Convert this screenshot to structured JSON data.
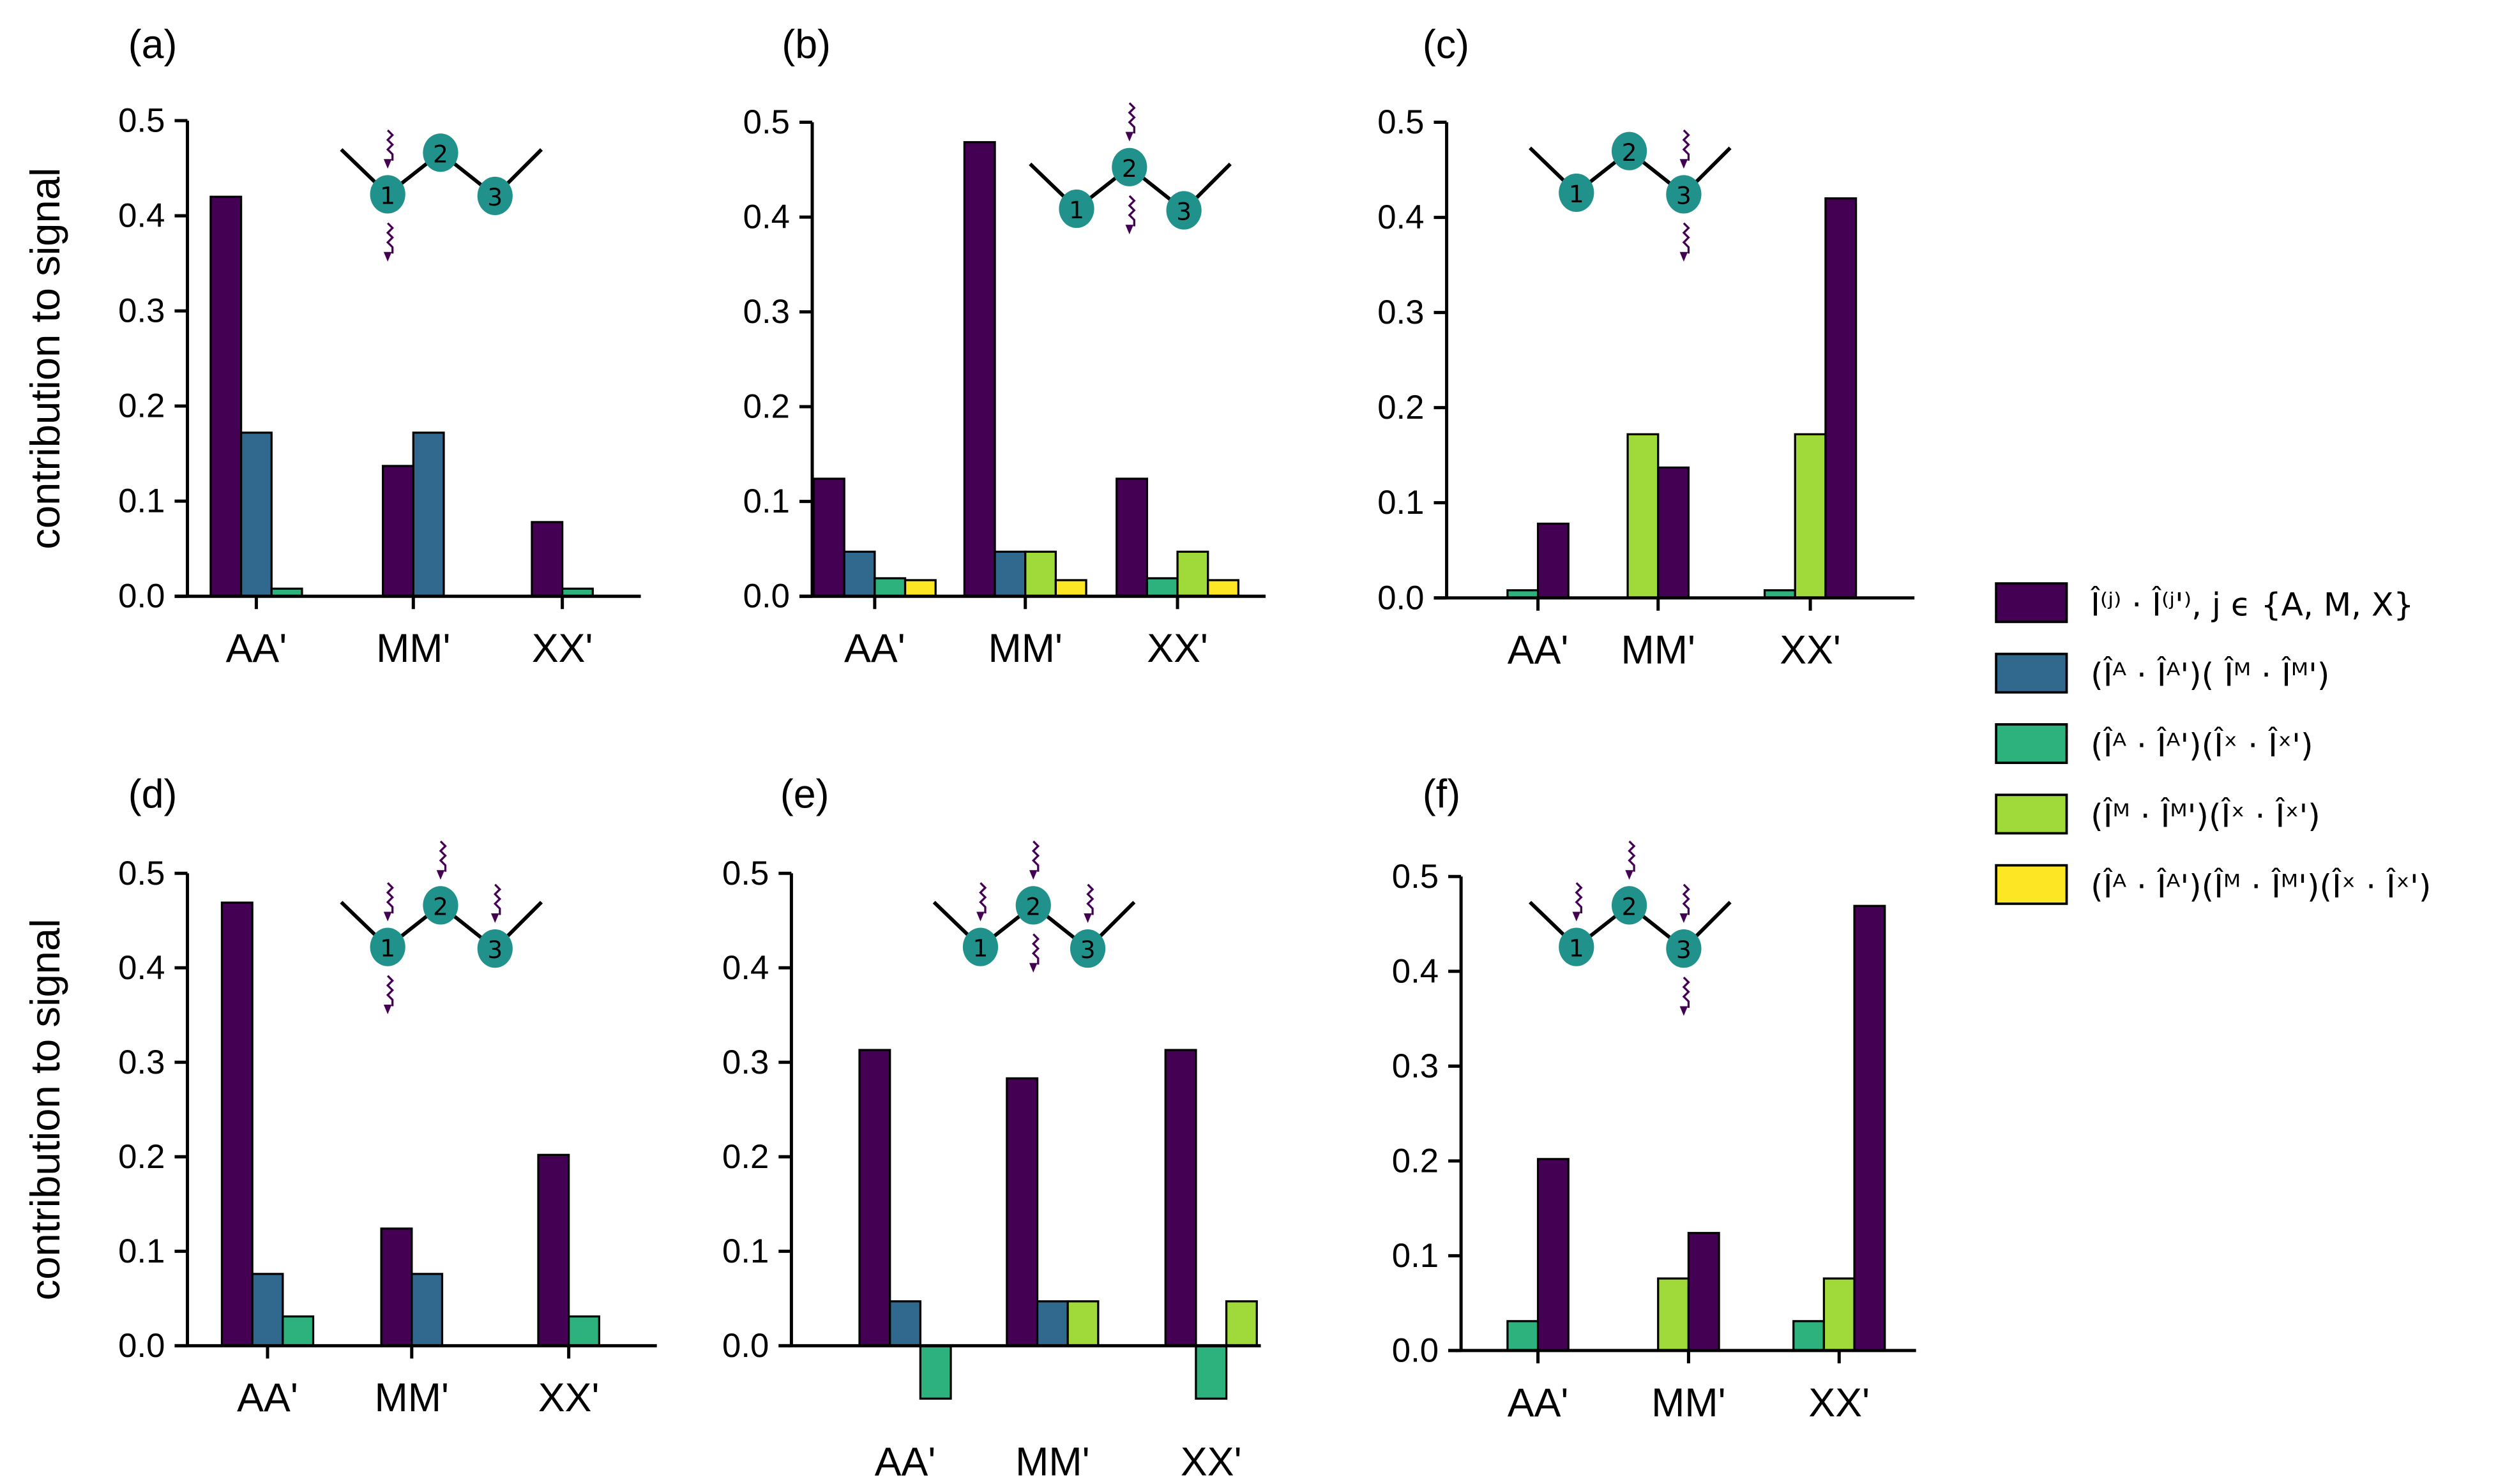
{
  "colors": {
    "s0": "#440154",
    "s1": "#31688e",
    "s2": "#2db27d",
    "s3": "#9fda3a",
    "s4": "#fde725",
    "node": "#21918c",
    "photon": "#440154"
  },
  "legend": [
    {
      "key": "s0",
      "label": "Î⁽ʲ⁾ · Î⁽ʲ'⁾,  j ϵ {A, M, X}"
    },
    {
      "key": "s1",
      "label": "(Îᴬ · Îᴬ')( Îᴹ · Îᴹ')"
    },
    {
      "key": "s2",
      "label": "(Îᴬ · Îᴬ')(Îˣ · Îˣ')"
    },
    {
      "key": "s3",
      "label": "(Îᴹ · Îᴹ')(Îˣ · Îˣ')"
    },
    {
      "key": "s4",
      "label": "(Îᴬ · Îᴬ')(Îᴹ · Îᴹ')(Îˣ · Îˣ')"
    }
  ],
  "chart_data": [
    {
      "panel": "(a)",
      "type": "bar",
      "ylabel": "contribution to signal",
      "ylim": [
        0,
        0.5
      ],
      "yticks": [
        "0.0",
        "0.1",
        "0.2",
        "0.3",
        "0.4",
        "0.5"
      ],
      "categories": [
        "AA'",
        "MM'",
        "XX'"
      ],
      "excited_sites": {
        "top": [
          1
        ],
        "bottom": [
          1
        ]
      },
      "groups": [
        [
          {
            "series": "s0",
            "value": 0.42
          },
          {
            "series": "s1",
            "value": 0.172
          },
          {
            "series": "s2",
            "value": 0.008
          }
        ],
        [
          {
            "series": "s0",
            "value": 0.137
          },
          {
            "series": "s1",
            "value": 0.172
          }
        ],
        [
          {
            "series": "s0",
            "value": 0.078
          },
          {
            "series": "s2",
            "value": 0.008
          }
        ]
      ]
    },
    {
      "panel": "(b)",
      "type": "bar",
      "ylabel": "",
      "ylim": [
        0,
        0.5
      ],
      "yticks": [
        "0.0",
        "0.1",
        "0.2",
        "0.3",
        "0.4",
        "0.5"
      ],
      "categories": [
        "AA'",
        "MM'",
        "XX'"
      ],
      "excited_sites": {
        "top": [
          2
        ],
        "bottom": [
          2
        ]
      },
      "groups": [
        [
          {
            "series": "s0",
            "value": 0.124
          },
          {
            "series": "s1",
            "value": 0.047
          },
          {
            "series": "s2",
            "value": 0.019
          },
          {
            "series": "s4",
            "value": 0.017
          }
        ],
        [
          {
            "series": "s0",
            "value": 0.479
          },
          {
            "series": "s1",
            "value": 0.047
          },
          {
            "series": "s3",
            "value": 0.047
          },
          {
            "series": "s4",
            "value": 0.017
          }
        ],
        [
          {
            "series": "s0",
            "value": 0.124
          },
          {
            "series": "s2",
            "value": 0.019
          },
          {
            "series": "s3",
            "value": 0.047
          },
          {
            "series": "s4",
            "value": 0.017
          }
        ]
      ]
    },
    {
      "panel": "(c)",
      "type": "bar",
      "ylabel": "",
      "ylim": [
        0,
        0.5
      ],
      "yticks": [
        "0.0",
        "0.1",
        "0.2",
        "0.3",
        "0.4",
        "0.5"
      ],
      "categories": [
        "AA'",
        "MM'",
        "XX'"
      ],
      "excited_sites": {
        "top": [
          3
        ],
        "bottom": [
          3
        ]
      },
      "groups": [
        [
          {
            "series": "s2",
            "value": 0.008
          },
          {
            "series": "s0",
            "value": 0.078
          }
        ],
        [
          {
            "series": "s3",
            "value": 0.172
          },
          {
            "series": "s0",
            "value": 0.137
          }
        ],
        [
          {
            "series": "s2",
            "value": 0.008
          },
          {
            "series": "s3",
            "value": 0.172
          },
          {
            "series": "s0",
            "value": 0.42
          }
        ]
      ]
    },
    {
      "panel": "(d)",
      "type": "bar",
      "ylabel": "contribution to signal",
      "ylim": [
        0,
        0.5
      ],
      "yticks": [
        "0.0",
        "0.1",
        "0.2",
        "0.3",
        "0.4",
        "0.5"
      ],
      "categories": [
        "AA'",
        "MM'",
        "XX'"
      ],
      "excited_sites": {
        "top": [
          1,
          2,
          3
        ],
        "bottom": [
          1
        ]
      },
      "groups": [
        [
          {
            "series": "s0",
            "value": 0.469
          },
          {
            "series": "s1",
            "value": 0.076
          },
          {
            "series": "s2",
            "value": 0.031
          }
        ],
        [
          {
            "series": "s0",
            "value": 0.124
          },
          {
            "series": "s1",
            "value": 0.076
          }
        ],
        [
          {
            "series": "s0",
            "value": 0.202
          },
          {
            "series": "s2",
            "value": 0.031
          }
        ]
      ]
    },
    {
      "panel": "(e)",
      "type": "bar",
      "ylabel": "",
      "ylim": [
        -0.06,
        0.5
      ],
      "yticks": [
        "0.0",
        "0.1",
        "0.2",
        "0.3",
        "0.4",
        "0.5"
      ],
      "categories": [
        "AA'",
        "MM'",
        "XX'"
      ],
      "excited_sites": {
        "top": [
          1,
          2,
          3
        ],
        "bottom": [
          2
        ]
      },
      "groups": [
        [
          {
            "series": "s0",
            "value": 0.313
          },
          {
            "series": "s1",
            "value": 0.047
          },
          {
            "series": "s2",
            "value": -0.056
          }
        ],
        [
          {
            "series": "s0",
            "value": 0.283
          },
          {
            "series": "s1",
            "value": 0.047
          },
          {
            "series": "s3",
            "value": 0.047
          }
        ],
        [
          {
            "series": "s0",
            "value": 0.313
          },
          {
            "series": "s2",
            "value": -0.056
          },
          {
            "series": "s3",
            "value": 0.047
          }
        ]
      ]
    },
    {
      "panel": "(f)",
      "type": "bar",
      "ylabel": "",
      "ylim": [
        0,
        0.5
      ],
      "yticks": [
        "0.0",
        "0.1",
        "0.2",
        "0.3",
        "0.4",
        "0.5"
      ],
      "categories": [
        "AA'",
        "MM'",
        "XX'"
      ],
      "excited_sites": {
        "top": [
          1,
          2,
          3
        ],
        "bottom": [
          3
        ]
      },
      "groups": [
        [
          {
            "series": "s2",
            "value": 0.031
          },
          {
            "series": "s0",
            "value": 0.202
          }
        ],
        [
          {
            "series": "s3",
            "value": 0.076
          },
          {
            "series": "s0",
            "value": 0.124
          }
        ],
        [
          {
            "series": "s2",
            "value": 0.031
          },
          {
            "series": "s3",
            "value": 0.076
          },
          {
            "series": "s0",
            "value": 0.469
          }
        ]
      ]
    }
  ],
  "node_labels": [
    "1",
    "2",
    "3"
  ]
}
